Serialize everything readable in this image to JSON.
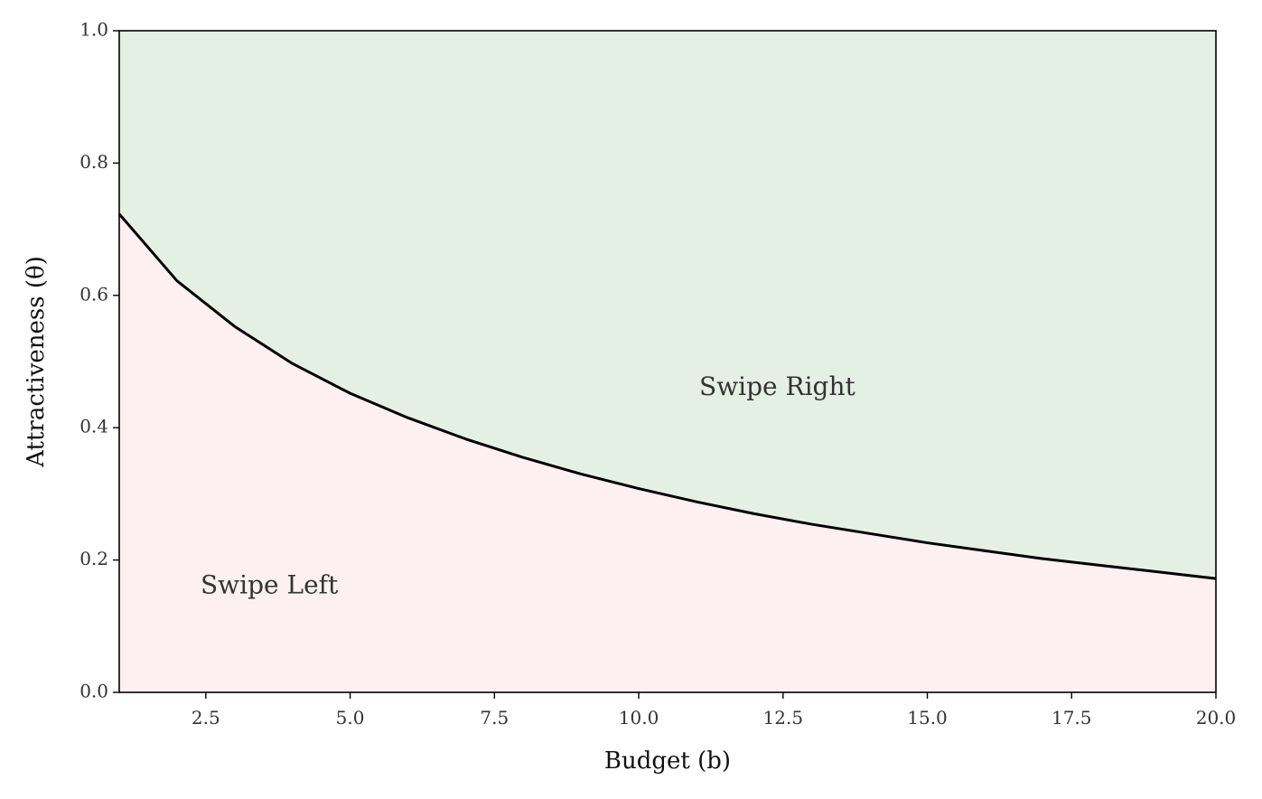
{
  "chart_data": {
    "type": "area",
    "xlabel": "Budget (b)",
    "ylabel": "Attractiveness (θ)",
    "xlim": [
      1,
      20
    ],
    "ylim": [
      0,
      1
    ],
    "xticks": [
      "2.5",
      "5.0",
      "7.5",
      "10.0",
      "12.5",
      "15.0",
      "17.5",
      "20.0"
    ],
    "yticks": [
      "0.0",
      "0.2",
      "0.4",
      "0.6",
      "0.8",
      "1.0"
    ],
    "grid": false,
    "series": [
      {
        "x": [
          1,
          2,
          3,
          4,
          5,
          6,
          7,
          8,
          9,
          10,
          11,
          12,
          13,
          14,
          15,
          16,
          17,
          18,
          19,
          20
        ],
        "y": [
          0.723,
          0.622,
          0.553,
          0.497,
          0.452,
          0.415,
          0.383,
          0.355,
          0.33,
          0.308,
          0.288,
          0.27,
          0.254,
          0.24,
          0.226,
          0.214,
          0.202,
          0.192,
          0.182,
          0.172
        ]
      }
    ],
    "regions": {
      "above": {
        "label": "Swipe Right",
        "color": "#e4f0e4"
      },
      "below": {
        "label": "Swipe Left",
        "color": "#fdf0f0"
      }
    },
    "annotations": [
      {
        "text": "Swipe Right",
        "x": 12.4,
        "y": 0.46
      },
      {
        "text": "Swipe Left",
        "x": 3.6,
        "y": 0.16
      }
    ],
    "line_color": "#000000"
  }
}
